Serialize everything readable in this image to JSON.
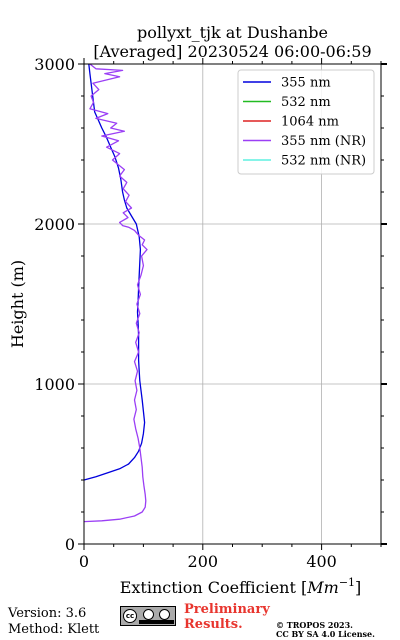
{
  "chart_data": {
    "type": "line",
    "title": "pollyxt_tjk at Dushanbe",
    "subtitle": "[Averaged] 20230524 06:00-06:59",
    "xlabel": "Extinction Coefficient [$Mm^{-1}$]",
    "xlabel_text": "Extinction Coefficient [",
    "xlabel_math_base": "Mm",
    "xlabel_math_sup": "−1",
    "xlabel_tail": "]",
    "ylabel": "Height (m)",
    "xlim": [
      0,
      500
    ],
    "ylim": [
      0,
      3000
    ],
    "xticks": [
      0,
      200,
      400
    ],
    "yticks": [
      0,
      1000,
      2000,
      3000
    ],
    "grid": true,
    "legend_position": "top-right",
    "series": [
      {
        "name": "355 nm",
        "color": "#0000dd",
        "points": [
          [
            0,
            400
          ],
          [
            20,
            420
          ],
          [
            40,
            445
          ],
          [
            60,
            470
          ],
          [
            75,
            500
          ],
          [
            85,
            540
          ],
          [
            92,
            580
          ],
          [
            97,
            630
          ],
          [
            100,
            690
          ],
          [
            102,
            760
          ],
          [
            100,
            830
          ],
          [
            98,
            900
          ],
          [
            96,
            960
          ],
          [
            94,
            1020
          ],
          [
            93,
            1080
          ],
          [
            92,
            1150
          ],
          [
            92,
            1220
          ],
          [
            92,
            1300
          ],
          [
            91,
            1380
          ],
          [
            90,
            1450
          ],
          [
            91,
            1520
          ],
          [
            92,
            1600
          ],
          [
            93,
            1680
          ],
          [
            94,
            1760
          ],
          [
            95,
            1840
          ],
          [
            93,
            1920
          ],
          [
            88,
            2000
          ],
          [
            80,
            2050
          ],
          [
            72,
            2100
          ],
          [
            68,
            2150
          ],
          [
            65,
            2200
          ],
          [
            62,
            2280
          ],
          [
            58,
            2350
          ],
          [
            52,
            2420
          ],
          [
            45,
            2480
          ],
          [
            38,
            2540
          ],
          [
            30,
            2600
          ],
          [
            24,
            2650
          ],
          [
            18,
            2700
          ],
          [
            16,
            2760
          ],
          [
            14,
            2820
          ],
          [
            12,
            2880
          ],
          [
            10,
            2940
          ],
          [
            8,
            3000
          ]
        ]
      },
      {
        "name": "532 nm",
        "color": "#22bb22",
        "points": []
      },
      {
        "name": "1064 nm",
        "color": "#dd2222",
        "points": []
      },
      {
        "name": "355 nm (NR)",
        "color": "#9b3ff5",
        "points": [
          [
            0,
            140
          ],
          [
            30,
            145
          ],
          [
            60,
            155
          ],
          [
            85,
            175
          ],
          [
            98,
            200
          ],
          [
            103,
            230
          ],
          [
            104,
            270
          ],
          [
            103,
            310
          ],
          [
            101,
            360
          ],
          [
            99,
            420
          ],
          [
            98,
            480
          ],
          [
            96,
            540
          ],
          [
            94,
            600
          ],
          [
            91,
            660
          ],
          [
            87,
            720
          ],
          [
            84,
            780
          ],
          [
            88,
            840
          ],
          [
            85,
            900
          ],
          [
            89,
            960
          ],
          [
            86,
            1020
          ],
          [
            90,
            1080
          ],
          [
            85,
            1140
          ],
          [
            92,
            1200
          ],
          [
            87,
            1260
          ],
          [
            93,
            1320
          ],
          [
            88,
            1380
          ],
          [
            94,
            1440
          ],
          [
            89,
            1500
          ],
          [
            95,
            1560
          ],
          [
            90,
            1620
          ],
          [
            96,
            1680
          ],
          [
            100,
            1740
          ],
          [
            97,
            1800
          ],
          [
            106,
            1840
          ],
          [
            98,
            1870
          ],
          [
            102,
            1900
          ],
          [
            92,
            1930
          ],
          [
            85,
            1960
          ],
          [
            75,
            1980
          ],
          [
            65,
            1990
          ],
          [
            60,
            2010
          ],
          [
            74,
            2040
          ],
          [
            66,
            2070
          ],
          [
            80,
            2100
          ],
          [
            70,
            2140
          ],
          [
            76,
            2180
          ],
          [
            66,
            2220
          ],
          [
            72,
            2260
          ],
          [
            60,
            2300
          ],
          [
            68,
            2340
          ],
          [
            48,
            2400
          ],
          [
            60,
            2440
          ],
          [
            38,
            2480
          ],
          [
            58,
            2520
          ],
          [
            30,
            2550
          ],
          [
            68,
            2580
          ],
          [
            45,
            2600
          ],
          [
            55,
            2630
          ],
          [
            20,
            2660
          ],
          [
            40,
            2690
          ],
          [
            10,
            2720
          ],
          [
            16,
            2760
          ],
          [
            12,
            2800
          ],
          [
            25,
            2840
          ],
          [
            15,
            2880
          ],
          [
            60,
            2920
          ],
          [
            35,
            2940
          ],
          [
            65,
            2960
          ],
          [
            20,
            2970
          ],
          [
            10,
            3000
          ]
        ]
      },
      {
        "name": "532 nm (NR)",
        "color": "#5ff0e0",
        "points": []
      }
    ]
  },
  "footer": {
    "version": "Version: 3.6",
    "method": "Method: Klett",
    "preliminary_line1": "Preliminary",
    "preliminary_line2": "Results.",
    "copyright_line1": "© TROPOS 2023.",
    "copyright_line2": "CC BY SA 4.0 License.",
    "logo_cc": "cc",
    "logo_by": "BY",
    "logo_sa": "SA"
  }
}
